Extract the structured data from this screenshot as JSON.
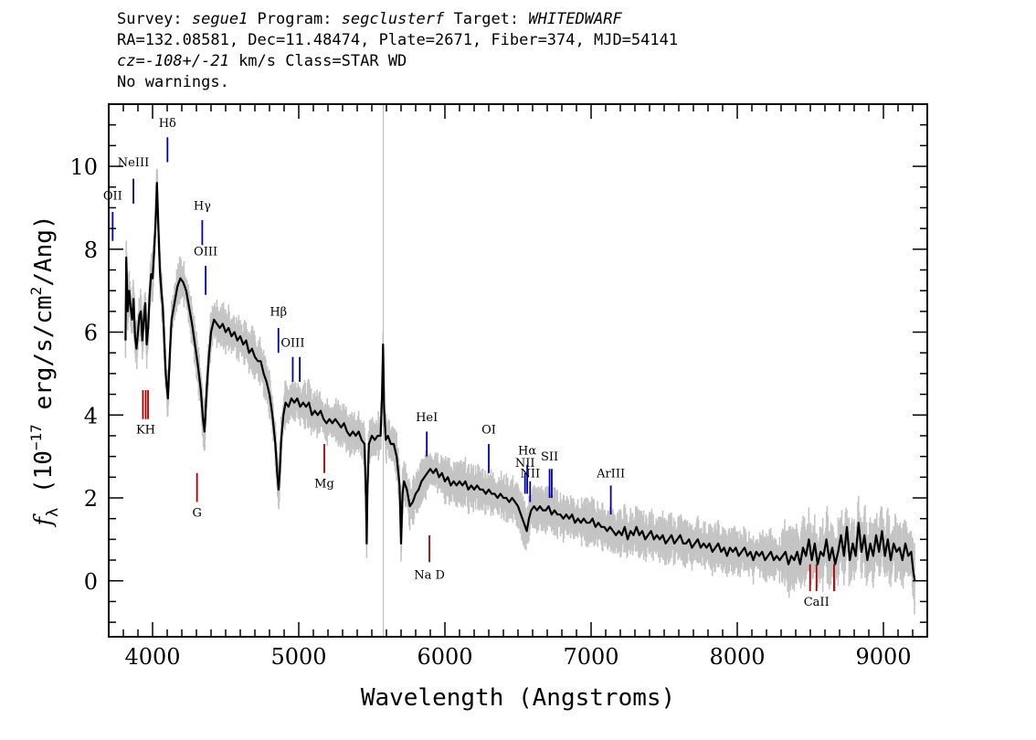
{
  "header": {
    "line1": [
      {
        "text": "Survey: ",
        "italic": false
      },
      {
        "text": "segue1",
        "italic": true
      },
      {
        "text": " Program: ",
        "italic": false
      },
      {
        "text": "segclusterf",
        "italic": true
      },
      {
        "text": " Target: ",
        "italic": false
      },
      {
        "text": "WHITEDWARF",
        "italic": true
      }
    ],
    "line2": "RA=132.08581, Dec=11.48474, Plate=2671, Fiber=374, MJD=54141",
    "line3": [
      {
        "text": "cz=-108+/-21",
        "italic": true
      },
      {
        "text": " km/s Class=STAR WD",
        "italic": false
      }
    ],
    "line4": "No warnings."
  },
  "chart_data": {
    "type": "line",
    "title": "",
    "xlabel": "Wavelength (Angstroms)",
    "ylabel": "f_λ (10^-17 erg/s/cm^2/Ang)",
    "ylabel_parts": {
      "f": "f",
      "sub": "λ",
      "pre": " (10",
      "exp1": "−17",
      "mid": " erg/s/cm",
      "exp2": "2",
      "post": "/Ang)"
    },
    "xlim": [
      3700,
      9300
    ],
    "ylim": [
      -1.35,
      11.5
    ],
    "xticks": [
      4000,
      5000,
      6000,
      7000,
      8000,
      9000
    ],
    "xtick_labels": [
      "4000",
      "5000",
      "6000",
      "7000",
      "8000",
      "9000"
    ],
    "yticks": [
      0,
      2,
      4,
      6,
      8,
      10
    ],
    "ytick_labels": [
      "0",
      "2",
      "4",
      "6",
      "8",
      "10"
    ],
    "vertical_line_x": 5578,
    "spectrum": [
      [
        3815,
        5.8
      ],
      [
        3820,
        7.8
      ],
      [
        3830,
        6.5
      ],
      [
        3840,
        7.0
      ],
      [
        3850,
        6.6
      ],
      [
        3860,
        6.3
      ],
      [
        3870,
        6.8
      ],
      [
        3880,
        5.9
      ],
      [
        3890,
        5.6
      ],
      [
        3900,
        6.0
      ],
      [
        3910,
        6.4
      ],
      [
        3920,
        6.5
      ],
      [
        3930,
        5.8
      ],
      [
        3940,
        6.3
      ],
      [
        3950,
        6.7
      ],
      [
        3960,
        5.7
      ],
      [
        3970,
        6.1
      ],
      [
        3980,
        6.9
      ],
      [
        3990,
        7.4
      ],
      [
        4000,
        7.3
      ],
      [
        4010,
        7.9
      ],
      [
        4020,
        8.6
      ],
      [
        4030,
        9.6
      ],
      [
        4040,
        8.5
      ],
      [
        4050,
        7.5
      ],
      [
        4060,
        7.0
      ],
      [
        4070,
        6.6
      ],
      [
        4080,
        5.8
      ],
      [
        4090,
        5.0
      ],
      [
        4100,
        4.6
      ],
      [
        4105,
        4.4
      ],
      [
        4110,
        4.8
      ],
      [
        4120,
        5.6
      ],
      [
        4130,
        6.3
      ],
      [
        4150,
        6.7
      ],
      [
        4170,
        7.1
      ],
      [
        4190,
        7.3
      ],
      [
        4210,
        7.2
      ],
      [
        4230,
        7.0
      ],
      [
        4250,
        6.6
      ],
      [
        4270,
        6.2
      ],
      [
        4290,
        5.7
      ],
      [
        4310,
        5.2
      ],
      [
        4330,
        4.6
      ],
      [
        4345,
        3.9
      ],
      [
        4355,
        3.6
      ],
      [
        4360,
        3.9
      ],
      [
        4370,
        4.6
      ],
      [
        4385,
        5.4
      ],
      [
        4400,
        6.0
      ],
      [
        4420,
        6.3
      ],
      [
        4440,
        6.2
      ],
      [
        4460,
        6.1
      ],
      [
        4480,
        6.2
      ],
      [
        4500,
        6.0
      ],
      [
        4520,
        6.1
      ],
      [
        4540,
        5.9
      ],
      [
        4560,
        6.0
      ],
      [
        4580,
        5.8
      ],
      [
        4600,
        5.9
      ],
      [
        4620,
        5.7
      ],
      [
        4640,
        5.8
      ],
      [
        4660,
        5.5
      ],
      [
        4680,
        5.6
      ],
      [
        4700,
        5.4
      ],
      [
        4720,
        5.3
      ],
      [
        4740,
        5.3
      ],
      [
        4760,
        5.0
      ],
      [
        4780,
        4.8
      ],
      [
        4800,
        4.5
      ],
      [
        4820,
        4.0
      ],
      [
        4840,
        3.3
      ],
      [
        4855,
        2.5
      ],
      [
        4862,
        2.2
      ],
      [
        4870,
        2.6
      ],
      [
        4880,
        3.4
      ],
      [
        4895,
        4.0
      ],
      [
        4910,
        4.3
      ],
      [
        4930,
        4.2
      ],
      [
        4950,
        4.4
      ],
      [
        4970,
        4.3
      ],
      [
        4990,
        4.4
      ],
      [
        5010,
        4.2
      ],
      [
        5030,
        4.3
      ],
      [
        5050,
        4.2
      ],
      [
        5070,
        4.3
      ],
      [
        5090,
        4.0
      ],
      [
        5110,
        4.1
      ],
      [
        5130,
        4.0
      ],
      [
        5150,
        4.1
      ],
      [
        5170,
        3.9
      ],
      [
        5190,
        3.8
      ],
      [
        5210,
        3.9
      ],
      [
        5230,
        3.8
      ],
      [
        5250,
        3.9
      ],
      [
        5270,
        3.8
      ],
      [
        5290,
        3.7
      ],
      [
        5310,
        3.8
      ],
      [
        5330,
        3.6
      ],
      [
        5350,
        3.5
      ],
      [
        5370,
        3.6
      ],
      [
        5390,
        3.5
      ],
      [
        5410,
        3.6
      ],
      [
        5430,
        3.4
      ],
      [
        5450,
        3.3
      ],
      [
        5460,
        2.0
      ],
      [
        5465,
        0.9
      ],
      [
        5470,
        2.2
      ],
      [
        5480,
        3.3
      ],
      [
        5500,
        3.5
      ],
      [
        5520,
        3.4
      ],
      [
        5540,
        3.5
      ],
      [
        5560,
        3.5
      ],
      [
        5570,
        4.5
      ],
      [
        5577,
        5.7
      ],
      [
        5584,
        4.2
      ],
      [
        5595,
        3.4
      ],
      [
        5610,
        3.5
      ],
      [
        5630,
        3.3
      ],
      [
        5650,
        3.3
      ],
      [
        5670,
        3.0
      ],
      [
        5690,
        2.3
      ],
      [
        5700,
        0.9
      ],
      [
        5710,
        2.1
      ],
      [
        5720,
        2.4
      ],
      [
        5740,
        2.2
      ],
      [
        5760,
        1.8
      ],
      [
        5780,
        1.9
      ],
      [
        5800,
        2.1
      ],
      [
        5820,
        2.2
      ],
      [
        5840,
        2.4
      ],
      [
        5860,
        2.5
      ],
      [
        5880,
        2.6
      ],
      [
        5900,
        2.7
      ],
      [
        5920,
        2.6
      ],
      [
        5940,
        2.7
      ],
      [
        5960,
        2.5
      ],
      [
        5980,
        2.6
      ],
      [
        6000,
        2.4
      ],
      [
        6020,
        2.5
      ],
      [
        6040,
        2.3
      ],
      [
        6060,
        2.4
      ],
      [
        6080,
        2.3
      ],
      [
        6100,
        2.4
      ],
      [
        6120,
        2.3
      ],
      [
        6140,
        2.4
      ],
      [
        6160,
        2.2
      ],
      [
        6180,
        2.3
      ],
      [
        6200,
        2.2
      ],
      [
        6220,
        2.3
      ],
      [
        6240,
        2.2
      ],
      [
        6260,
        2.2
      ],
      [
        6280,
        2.1
      ],
      [
        6300,
        2.2
      ],
      [
        6320,
        2.1
      ],
      [
        6340,
        2.1
      ],
      [
        6360,
        2.0
      ],
      [
        6380,
        2.1
      ],
      [
        6400,
        2.0
      ],
      [
        6420,
        2.0
      ],
      [
        6440,
        1.9
      ],
      [
        6460,
        2.0
      ],
      [
        6480,
        1.9
      ],
      [
        6500,
        1.8
      ],
      [
        6520,
        1.6
      ],
      [
        6540,
        1.4
      ],
      [
        6560,
        1.2
      ],
      [
        6575,
        1.5
      ],
      [
        6590,
        1.7
      ],
      [
        6610,
        1.8
      ],
      [
        6630,
        1.7
      ],
      [
        6650,
        1.8
      ],
      [
        6670,
        1.7
      ],
      [
        6690,
        1.7
      ],
      [
        6710,
        1.8
      ],
      [
        6730,
        1.6
      ],
      [
        6750,
        1.7
      ],
      [
        6770,
        1.6
      ],
      [
        6790,
        1.6
      ],
      [
        6810,
        1.5
      ],
      [
        6830,
        1.6
      ],
      [
        6850,
        1.5
      ],
      [
        6870,
        1.6
      ],
      [
        6890,
        1.4
      ],
      [
        6910,
        1.5
      ],
      [
        6930,
        1.4
      ],
      [
        6950,
        1.5
      ],
      [
        6970,
        1.4
      ],
      [
        6990,
        1.4
      ],
      [
        7010,
        1.5
      ],
      [
        7030,
        1.3
      ],
      [
        7050,
        1.4
      ],
      [
        7070,
        1.3
      ],
      [
        7090,
        1.3
      ],
      [
        7110,
        1.2
      ],
      [
        7130,
        1.3
      ],
      [
        7150,
        1.2
      ],
      [
        7170,
        1.1
      ],
      [
        7190,
        1.2
      ],
      [
        7210,
        1.1
      ],
      [
        7230,
        1.3
      ],
      [
        7250,
        1.0
      ],
      [
        7270,
        1.2
      ],
      [
        7290,
        1.1
      ],
      [
        7310,
        1.3
      ],
      [
        7330,
        1.1
      ],
      [
        7350,
        1.2
      ],
      [
        7370,
        1.0
      ],
      [
        7390,
        1.1
      ],
      [
        7410,
        1.2
      ],
      [
        7430,
        1.0
      ],
      [
        7450,
        1.1
      ],
      [
        7470,
        1.0
      ],
      [
        7490,
        1.1
      ],
      [
        7510,
        0.9
      ],
      [
        7530,
        1.0
      ],
      [
        7550,
        1.1
      ],
      [
        7570,
        0.9
      ],
      [
        7590,
        1.0
      ],
      [
        7610,
        1.1
      ],
      [
        7630,
        0.9
      ],
      [
        7650,
        0.9
      ],
      [
        7670,
        1.0
      ],
      [
        7690,
        0.8
      ],
      [
        7710,
        0.9
      ],
      [
        7730,
        1.0
      ],
      [
        7750,
        0.8
      ],
      [
        7770,
        0.9
      ],
      [
        7790,
        0.8
      ],
      [
        7810,
        0.9
      ],
      [
        7830,
        0.7
      ],
      [
        7850,
        0.8
      ],
      [
        7870,
        0.9
      ],
      [
        7890,
        0.7
      ],
      [
        7910,
        0.8
      ],
      [
        7930,
        0.6
      ],
      [
        7950,
        0.8
      ],
      [
        7970,
        0.7
      ],
      [
        7990,
        0.8
      ],
      [
        8010,
        0.6
      ],
      [
        8030,
        0.7
      ],
      [
        8050,
        0.8
      ],
      [
        8070,
        0.6
      ],
      [
        8090,
        0.7
      ],
      [
        8110,
        0.5
      ],
      [
        8130,
        0.7
      ],
      [
        8150,
        0.6
      ],
      [
        8170,
        0.7
      ],
      [
        8190,
        0.5
      ],
      [
        8210,
        0.6
      ],
      [
        8230,
        0.7
      ],
      [
        8250,
        0.5
      ],
      [
        8270,
        0.6
      ],
      [
        8290,
        0.5
      ],
      [
        8310,
        0.6
      ],
      [
        8330,
        0.7
      ],
      [
        8350,
        0.4
      ],
      [
        8370,
        0.6
      ],
      [
        8390,
        0.5
      ],
      [
        8410,
        0.7
      ],
      [
        8430,
        0.4
      ],
      [
        8450,
        0.8
      ],
      [
        8470,
        0.6
      ],
      [
        8490,
        1.0
      ],
      [
        8510,
        0.5
      ],
      [
        8530,
        0.9
      ],
      [
        8550,
        0.4
      ],
      [
        8570,
        0.7
      ],
      [
        8590,
        0.6
      ],
      [
        8610,
        1.0
      ],
      [
        8630,
        0.5
      ],
      [
        8650,
        0.8
      ],
      [
        8670,
        0.4
      ],
      [
        8690,
        0.7
      ],
      [
        8710,
        1.1
      ],
      [
        8730,
        0.6
      ],
      [
        8750,
        1.3
      ],
      [
        8770,
        0.5
      ],
      [
        8790,
        0.9
      ],
      [
        8810,
        0.6
      ],
      [
        8830,
        1.4
      ],
      [
        8850,
        0.7
      ],
      [
        8870,
        1.1
      ],
      [
        8890,
        0.5
      ],
      [
        8910,
        0.9
      ],
      [
        8930,
        0.6
      ],
      [
        8950,
        1.1
      ],
      [
        8970,
        0.7
      ],
      [
        8990,
        1.2
      ],
      [
        9010,
        0.6
      ],
      [
        9030,
        1.0
      ],
      [
        9050,
        0.5
      ],
      [
        9070,
        0.9
      ],
      [
        9090,
        0.7
      ],
      [
        9110,
        0.8
      ],
      [
        9130,
        0.5
      ],
      [
        9150,
        0.9
      ],
      [
        9170,
        0.6
      ],
      [
        9190,
        0.7
      ],
      [
        9205,
        0.2
      ],
      [
        9215,
        0.0
      ]
    ],
    "emission_lines": [
      {
        "label": "OII",
        "x": 3727,
        "y0": 8.2,
        "y1": 8.9,
        "label_y": 9.2,
        "color": "#0000aa"
      },
      {
        "label": "NeIII",
        "x": 3869,
        "y0": 9.1,
        "y1": 9.7,
        "label_y": 10.0,
        "color": "#0000aa"
      },
      {
        "label": "Hδ",
        "x": 4102,
        "y0": 10.1,
        "y1": 10.7,
        "label_y": 10.95,
        "color": "#0000aa"
      },
      {
        "label": "Hγ",
        "x": 4340,
        "y0": 8.1,
        "y1": 8.7,
        "label_y": 8.95,
        "color": "#0000aa"
      },
      {
        "label": "OIII",
        "x": 4363,
        "y0": 6.9,
        "y1": 7.6,
        "label_y": 7.85,
        "color": "#0000aa"
      },
      {
        "label": "Hβ",
        "x": 4861,
        "y0": 5.5,
        "y1": 6.1,
        "label_y": 6.4,
        "color": "#0000aa"
      },
      {
        "label": "OIII",
        "x": 4959,
        "y0": 4.8,
        "y1": 5.4,
        "label_y": 5.65,
        "color": "#0000aa"
      },
      {
        "label": "",
        "x": 5007,
        "y0": 4.8,
        "y1": 5.4,
        "label_y": 0,
        "color": "#0000aa"
      },
      {
        "label": "HeI",
        "x": 5876,
        "y0": 3.0,
        "y1": 3.6,
        "label_y": 3.85,
        "color": "#0000aa"
      },
      {
        "label": "OI",
        "x": 6300,
        "y0": 2.6,
        "y1": 3.3,
        "label_y": 3.55,
        "color": "#0000aa"
      },
      {
        "label": "NII",
        "x": 6548,
        "y0": 2.1,
        "y1": 2.6,
        "label_y": 2.75,
        "color": "#0000aa"
      },
      {
        "label": "Hα",
        "x": 6563,
        "y0": 2.1,
        "y1": 2.8,
        "label_y": 3.05,
        "color": "#0000aa"
      },
      {
        "label": "NII",
        "x": 6583,
        "y0": 1.9,
        "y1": 2.4,
        "label_y": 2.5,
        "color": "#0000aa"
      },
      {
        "label": "SII",
        "x": 6716,
        "y0": 2.0,
        "y1": 2.7,
        "label_y": 2.9,
        "color": "#0000aa"
      },
      {
        "label": "",
        "x": 6731,
        "y0": 2.0,
        "y1": 2.7,
        "label_y": 0,
        "color": "#0000aa"
      },
      {
        "label": "ArIII",
        "x": 7135,
        "y0": 1.6,
        "y1": 2.3,
        "label_y": 2.5,
        "color": "#0000aa"
      }
    ],
    "absorption_lines": [
      {
        "label": "",
        "x": 3934,
        "y0": 3.9,
        "y1": 4.6,
        "color": "#aa0000"
      },
      {
        "label": "KH",
        "x": 3953,
        "y0": 3.9,
        "y1": 4.6,
        "label_y": 3.55,
        "color": "#aa0000"
      },
      {
        "label": "",
        "x": 3969,
        "y0": 3.9,
        "y1": 4.6,
        "color": "#aa0000"
      },
      {
        "label": "G",
        "x": 4304,
        "y0": 1.9,
        "y1": 2.6,
        "label_y": 1.55,
        "color": "#aa0000"
      },
      {
        "label": "Mg",
        "x": 5175,
        "y0": 2.6,
        "y1": 3.3,
        "label_y": 2.25,
        "color": "#aa0000"
      },
      {
        "label": "Na D",
        "x": 5894,
        "y0": 0.45,
        "y1": 1.1,
        "label_y": 0.05,
        "color": "#aa0000"
      },
      {
        "label": "",
        "x": 8498,
        "y0": -0.25,
        "y1": 0.4,
        "color": "#aa0000"
      },
      {
        "label": "CaII",
        "x": 8542,
        "y0": -0.25,
        "y1": 0.4,
        "label_y": -0.6,
        "color": "#aa0000"
      },
      {
        "label": "",
        "x": 8662,
        "y0": -0.25,
        "y1": 0.4,
        "color": "#aa0000"
      }
    ]
  }
}
